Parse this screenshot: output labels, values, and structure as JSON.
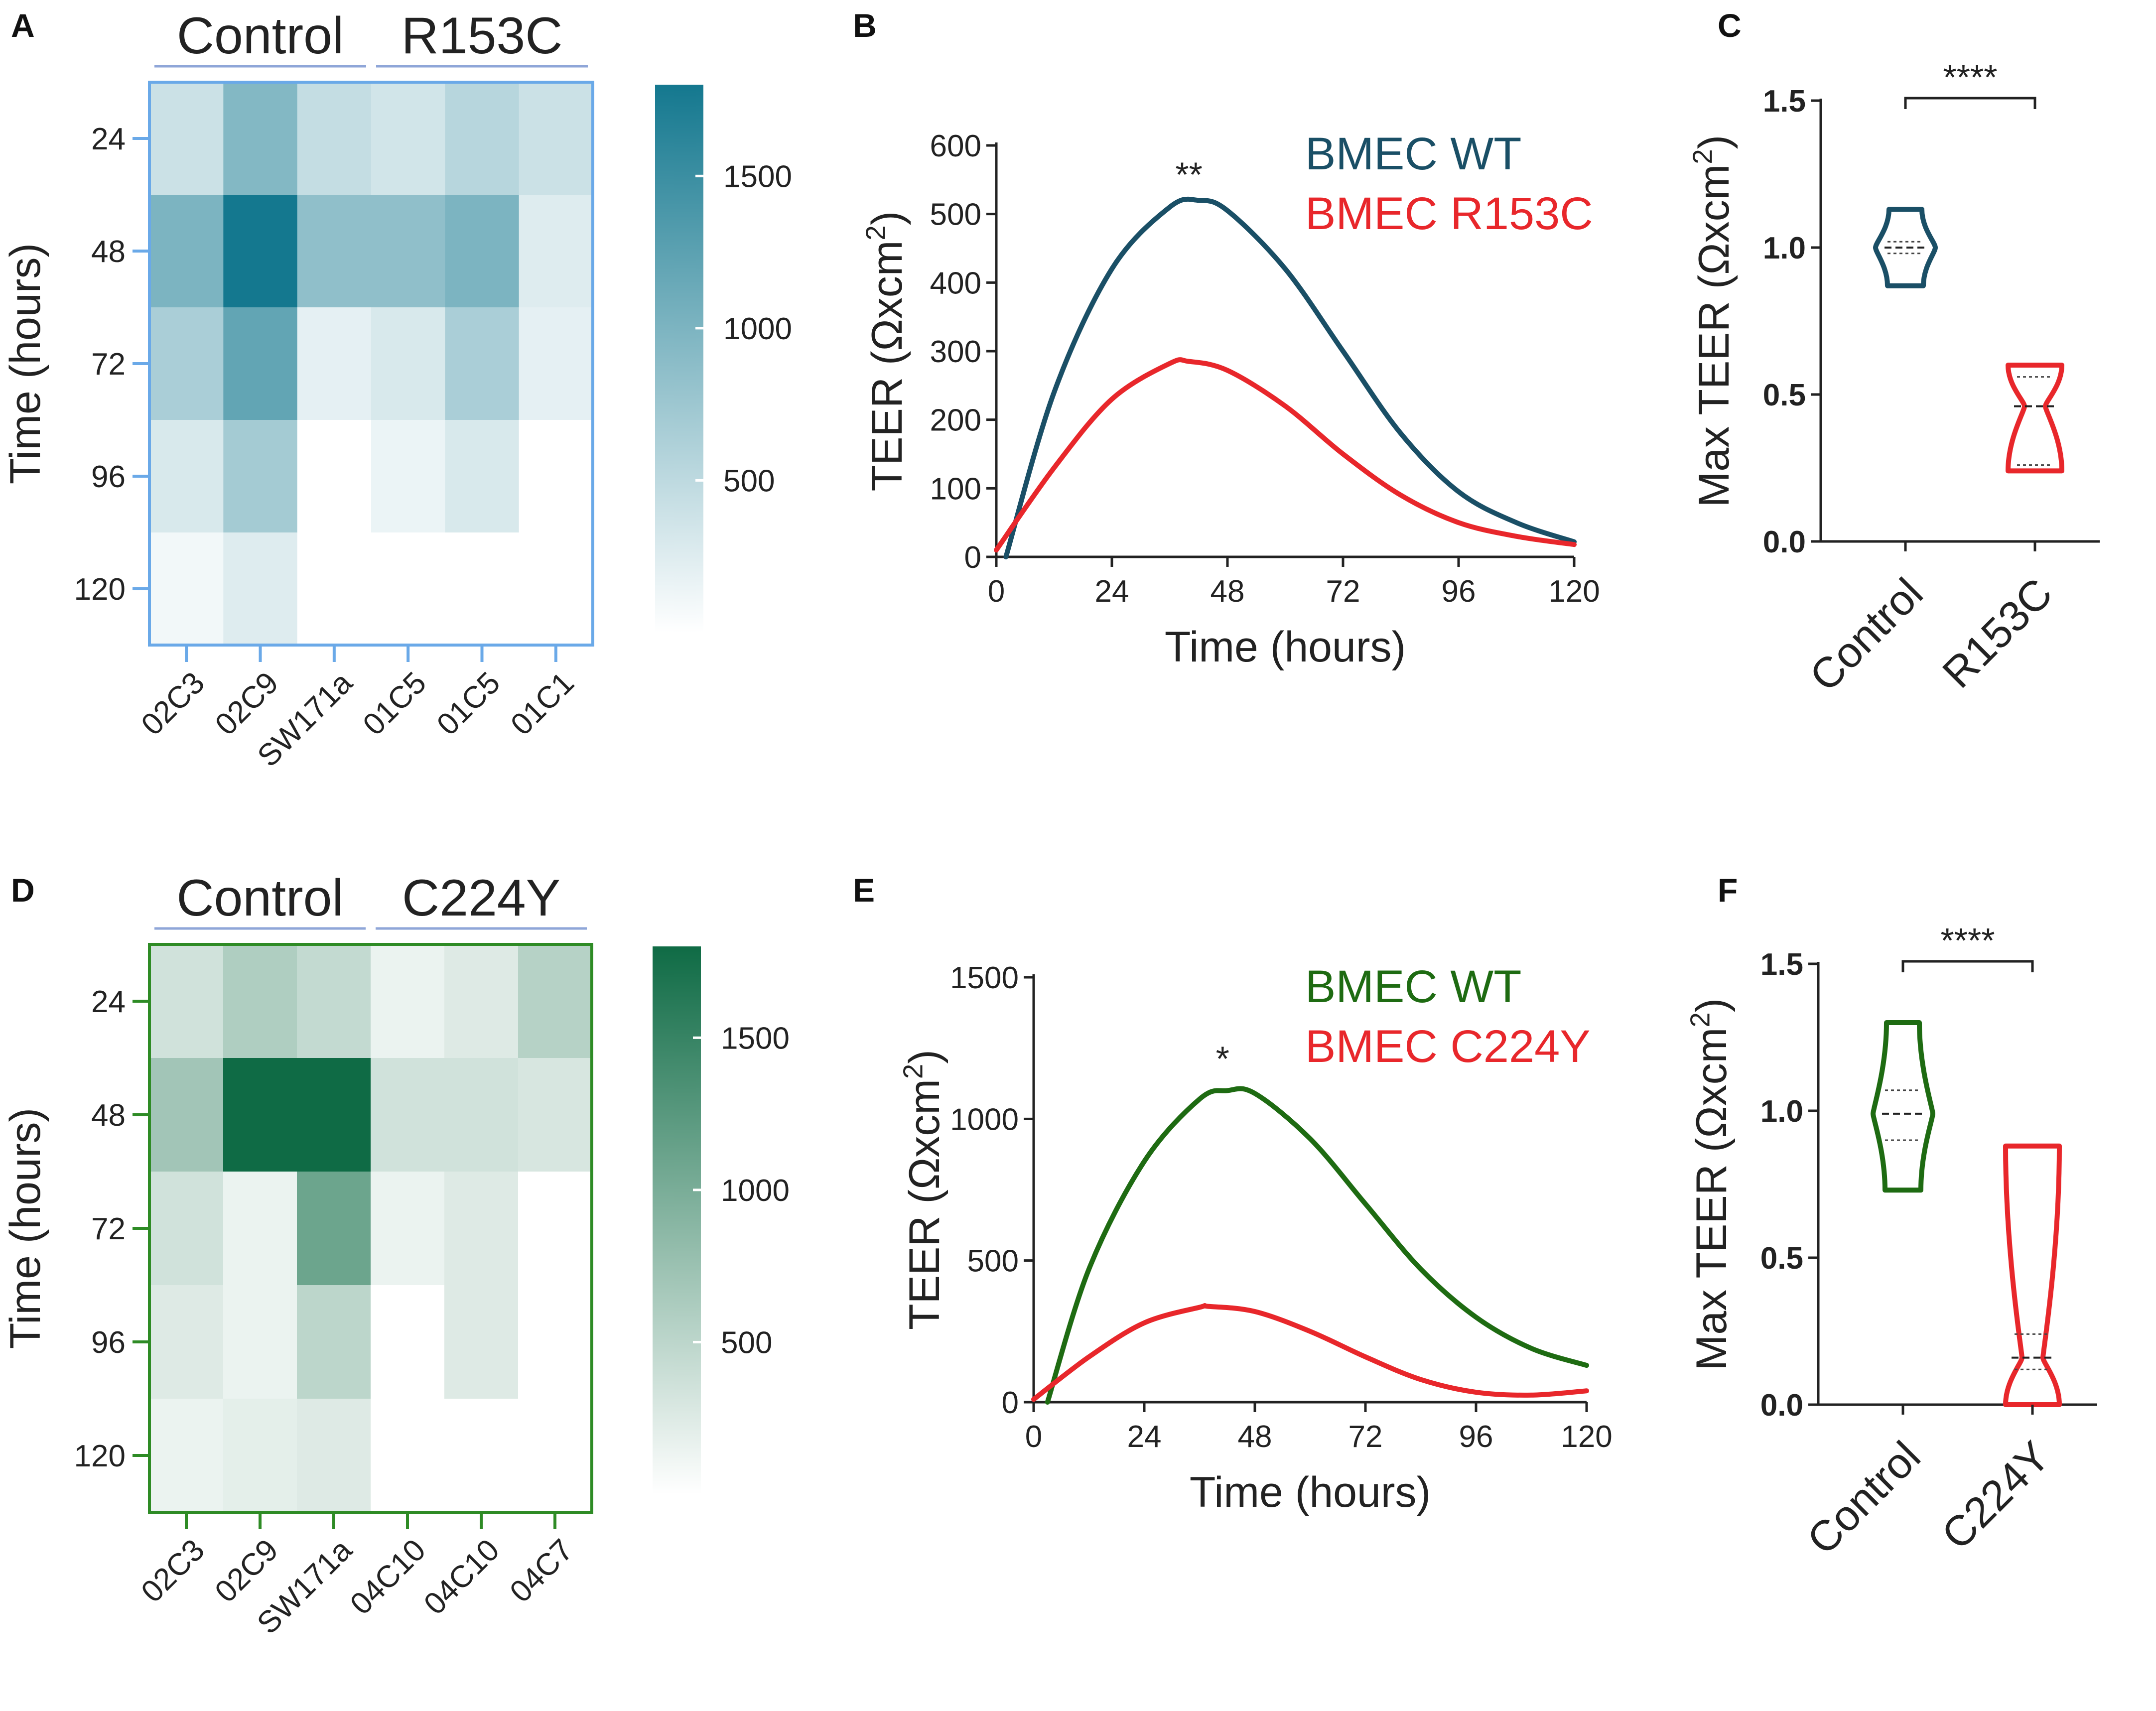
{
  "figure": {
    "panels": {
      "A": "A",
      "B": "B",
      "C": "C",
      "D": "D",
      "E": "E",
      "F": "F"
    }
  },
  "chart_data": [
    {
      "panel": "A",
      "type": "heatmap",
      "ylabel": "Time (hours)",
      "rows": [
        "24",
        "48",
        "72",
        "96",
        "120"
      ],
      "columns": [
        "02C3",
        "02C9",
        "SW171a",
        "01C5",
        "01C5",
        "01C1"
      ],
      "groups": [
        {
          "label": "Control",
          "start_col": 0,
          "end_col": 2
        },
        {
          "label": "R153C",
          "start_col": 3,
          "end_col": 5
        }
      ],
      "values": [
        [
          400,
          950,
          450,
          350,
          550,
          400
        ],
        [
          1000,
          1800,
          850,
          850,
          1000,
          250
        ],
        [
          650,
          1200,
          200,
          300,
          650,
          200
        ],
        [
          300,
          700,
          0,
          150,
          300,
          0
        ],
        [
          100,
          250,
          0,
          0,
          0,
          0
        ]
      ],
      "colorbar": {
        "min": 0,
        "max": 1800,
        "ticks": [
          "500",
          "1000",
          "1500"
        ],
        "tick_values": [
          500,
          1000,
          1500
        ]
      },
      "color": "#14788f",
      "border_color": "#6aa9e8"
    },
    {
      "panel": "B",
      "type": "line",
      "xlabel": "Time (hours)",
      "ylabel": "TEER (Ωxcm²)",
      "ylabel_main": "TEER (Ωxcm",
      "ylabel_sup": "2",
      "ylabel_close": ")",
      "xlim": [
        0,
        120
      ],
      "ylim": [
        0,
        600
      ],
      "xticks": [
        "0",
        "24",
        "48",
        "72",
        "96",
        "120"
      ],
      "yticks": [
        "0",
        "100",
        "200",
        "300",
        "400",
        "500",
        "600"
      ],
      "series": [
        {
          "name": "BMEC WT",
          "color": "#1a4f66",
          "x": [
            2,
            12,
            24,
            36,
            42,
            48,
            60,
            72,
            84,
            96,
            108,
            120
          ],
          "y": [
            0,
            240,
            420,
            510,
            520,
            505,
            420,
            300,
            180,
            95,
            50,
            22
          ]
        },
        {
          "name": "BMEC R153C",
          "color": "#e8272b",
          "x": [
            0,
            12,
            24,
            36,
            40,
            48,
            60,
            72,
            84,
            96,
            108,
            120
          ],
          "y": [
            10,
            130,
            230,
            282,
            285,
            272,
            220,
            150,
            90,
            50,
            30,
            18
          ]
        }
      ],
      "annotations": [
        {
          "text": "**",
          "x": 40,
          "y": 540
        }
      ]
    },
    {
      "panel": "C",
      "type": "violin",
      "ylabel": "Max TEER (Ωxcm²)",
      "ylabel_main": "Max TEER (Ωxcm",
      "ylabel_sup": "2",
      "ylabel_close": ")",
      "categories": [
        "Control",
        "R153C"
      ],
      "ylim": [
        0,
        1.5
      ],
      "yticks": [
        "0.0",
        "0.5",
        "1.0",
        "1.5"
      ],
      "series": [
        {
          "name": "Control",
          "color": "#1a4f66",
          "min": 0.87,
          "max": 1.13,
          "median": 1.0,
          "q1": 0.98,
          "q3": 1.02
        },
        {
          "name": "R153C",
          "color": "#e8272b",
          "min": 0.24,
          "max": 0.6,
          "median": 0.46,
          "q1": 0.26,
          "q3": 0.56
        }
      ],
      "significance": "****"
    },
    {
      "panel": "D",
      "type": "heatmap",
      "ylabel": "Time (hours)",
      "rows": [
        "24",
        "48",
        "72",
        "96",
        "120"
      ],
      "columns": [
        "02C3",
        "02C9",
        "SW171a",
        "04C10",
        "04C10",
        "04C7"
      ],
      "groups": [
        {
          "label": "Control",
          "start_col": 0,
          "end_col": 2
        },
        {
          "label": "C224Y",
          "start_col": 3,
          "end_col": 5
        }
      ],
      "values": [
        [
          350,
          600,
          450,
          150,
          250,
          550
        ],
        [
          700,
          1800,
          1800,
          350,
          350,
          300
        ],
        [
          350,
          150,
          1100,
          150,
          250,
          0
        ],
        [
          250,
          150,
          500,
          0,
          250,
          0
        ],
        [
          150,
          200,
          250,
          0,
          0,
          0
        ]
      ],
      "colorbar": {
        "min": 0,
        "max": 1800,
        "ticks": [
          "500",
          "1000",
          "1500"
        ],
        "tick_values": [
          500,
          1000,
          1500
        ]
      },
      "color": "#0f6b45",
      "border_color": "#2e8b25"
    },
    {
      "panel": "E",
      "type": "line",
      "xlabel": "Time (hours)",
      "ylabel": "TEER (Ωxcm²)",
      "ylabel_main": "TEER (Ωxcm",
      "ylabel_sup": "2",
      "ylabel_close": ")",
      "xlim": [
        0,
        120
      ],
      "ylim": [
        0,
        1500
      ],
      "xticks": [
        "0",
        "24",
        "48",
        "72",
        "96",
        "120"
      ],
      "yticks": [
        "0",
        "500",
        "1000",
        "1500"
      ],
      "series": [
        {
          "name": "BMEC WT",
          "color": "#1e6b12",
          "x": [
            3,
            12,
            24,
            36,
            42,
            48,
            60,
            72,
            84,
            96,
            108,
            120
          ],
          "y": [
            0,
            470,
            850,
            1070,
            1100,
            1090,
            930,
            700,
            470,
            300,
            190,
            130
          ]
        },
        {
          "name": "BMEC C224Y",
          "color": "#e8272b",
          "x": [
            0,
            12,
            24,
            36,
            38,
            48,
            60,
            72,
            84,
            96,
            108,
            120
          ],
          "y": [
            10,
            160,
            280,
            335,
            338,
            320,
            250,
            160,
            80,
            35,
            25,
            40
          ]
        }
      ],
      "annotations": [
        {
          "text": "*",
          "x": 41,
          "y": 1170
        }
      ]
    },
    {
      "panel": "F",
      "type": "violin",
      "ylabel": "Max TEER (Ωxcm²)",
      "ylabel_main": "Max TEER (Ωxcm",
      "ylabel_sup": "2",
      "ylabel_close": ")",
      "categories": [
        "Control",
        "C224Y"
      ],
      "ylim": [
        0,
        1.5
      ],
      "yticks": [
        "0.0",
        "0.5",
        "1.0",
        "1.5"
      ],
      "series": [
        {
          "name": "Control",
          "color": "#1e6b12",
          "min": 0.73,
          "max": 1.3,
          "median": 0.99,
          "q1": 0.9,
          "q3": 1.07
        },
        {
          "name": "C224Y",
          "color": "#e8272b",
          "min": 0.0,
          "max": 0.88,
          "median": 0.16,
          "q1": 0.12,
          "q3": 0.24
        }
      ],
      "significance": "****"
    }
  ]
}
